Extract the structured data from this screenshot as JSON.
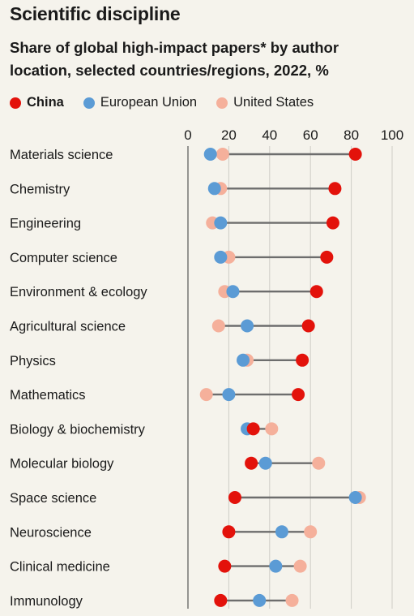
{
  "header": {
    "title": "Scientific discipline",
    "subtitle": "Share of global high-impact papers* by author location, selected countries/regions, 2022, %"
  },
  "legend": [
    {
      "name": "China",
      "color": "#e3120b",
      "bold": true
    },
    {
      "name": "European Union",
      "color": "#5b9bd5",
      "bold": false
    },
    {
      "name": "United States",
      "color": "#f5b09b",
      "bold": false
    }
  ],
  "chart_data": {
    "type": "dot",
    "title": "Scientific discipline",
    "subtitle": "Share of global high-impact papers* by author location, selected countries/regions, 2022, %",
    "xlim": [
      0,
      100
    ],
    "xticks": [
      0,
      20,
      40,
      60,
      80,
      100
    ],
    "grid": true,
    "categories": [
      "Materials science",
      "Chemistry",
      "Engineering",
      "Computer science",
      "Environment & ecology",
      "Agricultural science",
      "Physics",
      "Mathematics",
      "Biology & biochemistry",
      "Molecular biology",
      "Space science",
      "Neuroscience",
      "Clinical medicine",
      "Immunology"
    ],
    "series": [
      {
        "name": "United States",
        "color": "#f5b09b",
        "values": [
          17,
          16,
          12,
          20,
          18,
          15,
          29,
          9,
          41,
          64,
          84,
          60,
          55,
          51
        ]
      },
      {
        "name": "European Union",
        "color": "#5b9bd5",
        "values": [
          11,
          13,
          16,
          16,
          22,
          29,
          27,
          20,
          29,
          38,
          82,
          46,
          43,
          35
        ]
      },
      {
        "name": "China",
        "color": "#e3120b",
        "values": [
          82,
          72,
          71,
          68,
          63,
          59,
          56,
          54,
          32,
          31,
          23,
          20,
          18,
          16
        ]
      }
    ]
  }
}
